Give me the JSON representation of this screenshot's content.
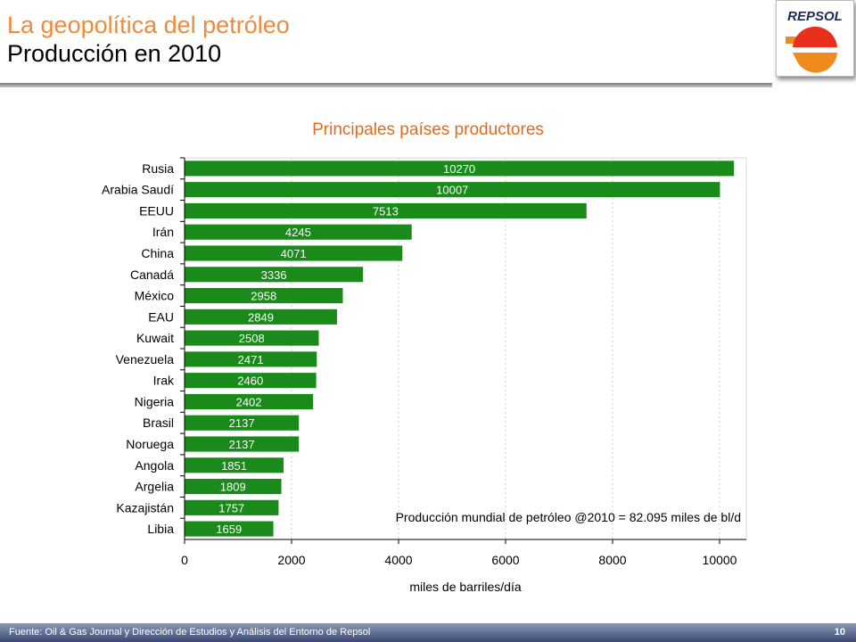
{
  "header": {
    "title_line1": "La geopolítica del petróleo",
    "title_line2": "Producción en 2010",
    "logo_text": "REPSOL"
  },
  "chart_data": {
    "type": "bar",
    "orientation": "horizontal",
    "title": "Principales países productores",
    "xlabel": "miles de barriles/día",
    "ylabel": "",
    "categories": [
      "Rusia",
      "Arabia Saudí",
      "EEUU",
      "Irán",
      "China",
      "Canadá",
      "México",
      "EAU",
      "Kuwait",
      "Venezuela",
      "Irak",
      "Nigeria",
      "Brasil",
      "Noruega",
      "Angola",
      "Argelia",
      "Kazajistán",
      "Libia"
    ],
    "values": [
      10270,
      10007,
      7513,
      4245,
      4071,
      3336,
      2958,
      2849,
      2508,
      2471,
      2460,
      2402,
      2137,
      2137,
      1851,
      1809,
      1757,
      1659
    ],
    "xlim": [
      0,
      10500
    ],
    "xticks": [
      0,
      2000,
      4000,
      6000,
      8000,
      10000
    ],
    "grid": true,
    "bar_color": "#1a8a1a",
    "annotation": "Producción mundial de petróleo @2010 = 82.095 miles de bl/d"
  },
  "footer": {
    "source": "Fuente: Oil & Gas Journal y Dirección de Estudios y Análisis del Entorno de Repsol",
    "page": "10"
  }
}
